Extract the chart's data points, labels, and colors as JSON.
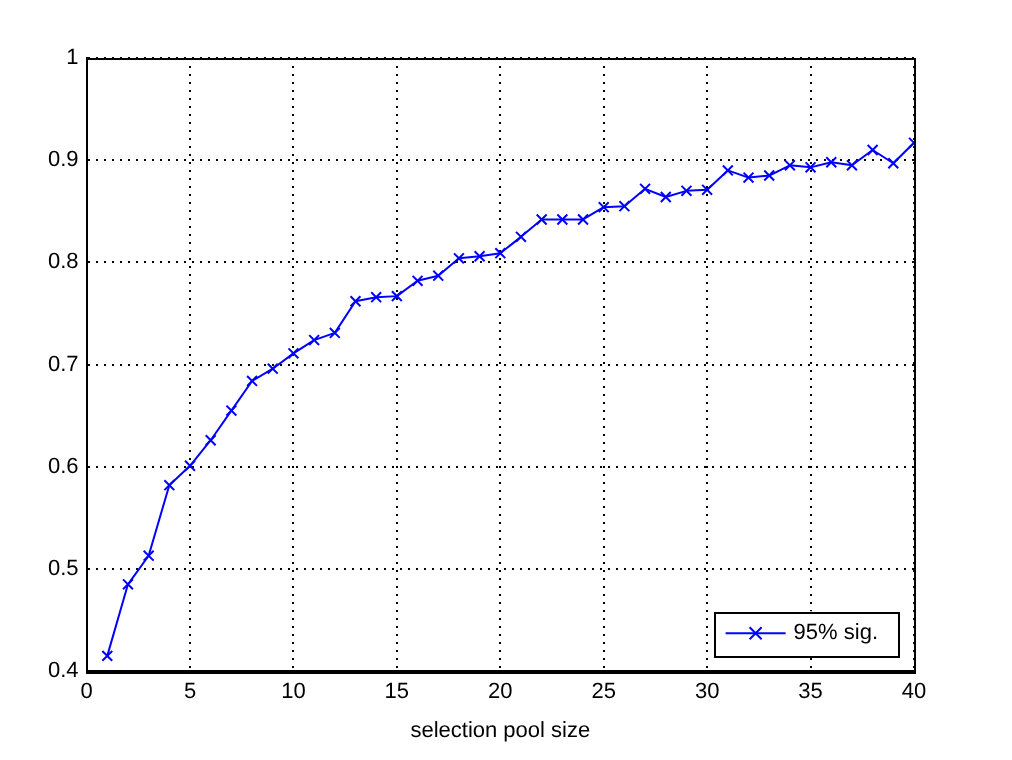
{
  "chart_data": {
    "type": "line",
    "xlabel": "selection pool size",
    "x": [
      1,
      2,
      3,
      4,
      5,
      6,
      7,
      8,
      9,
      10,
      11,
      12,
      13,
      14,
      15,
      16,
      17,
      18,
      19,
      20,
      21,
      22,
      23,
      24,
      25,
      26,
      27,
      28,
      29,
      30,
      31,
      32,
      33,
      34,
      35,
      36,
      37,
      38,
      39,
      40
    ],
    "series": [
      {
        "name": "95% sig.",
        "color": "#0000ff",
        "values": [
          0.415,
          0.485,
          0.513,
          0.582,
          0.601,
          0.626,
          0.655,
          0.684,
          0.696,
          0.711,
          0.724,
          0.731,
          0.762,
          0.766,
          0.767,
          0.782,
          0.787,
          0.804,
          0.806,
          0.809,
          0.825,
          0.842,
          0.842,
          0.842,
          0.854,
          0.855,
          0.872,
          0.864,
          0.87,
          0.871,
          0.89,
          0.883,
          0.885,
          0.895,
          0.893,
          0.898,
          0.895,
          0.91,
          0.897,
          0.917
        ]
      }
    ],
    "xlim": [
      0,
      40
    ],
    "xticks": [
      0,
      5,
      10,
      15,
      20,
      25,
      30,
      35,
      40
    ],
    "ylim": [
      0.4,
      1
    ],
    "yticks": [
      0.4,
      0.5,
      0.6,
      0.7,
      0.8,
      0.9,
      1
    ],
    "grid": true,
    "legend": "bottom right",
    "marker": "cross",
    "line_style": "solid"
  }
}
